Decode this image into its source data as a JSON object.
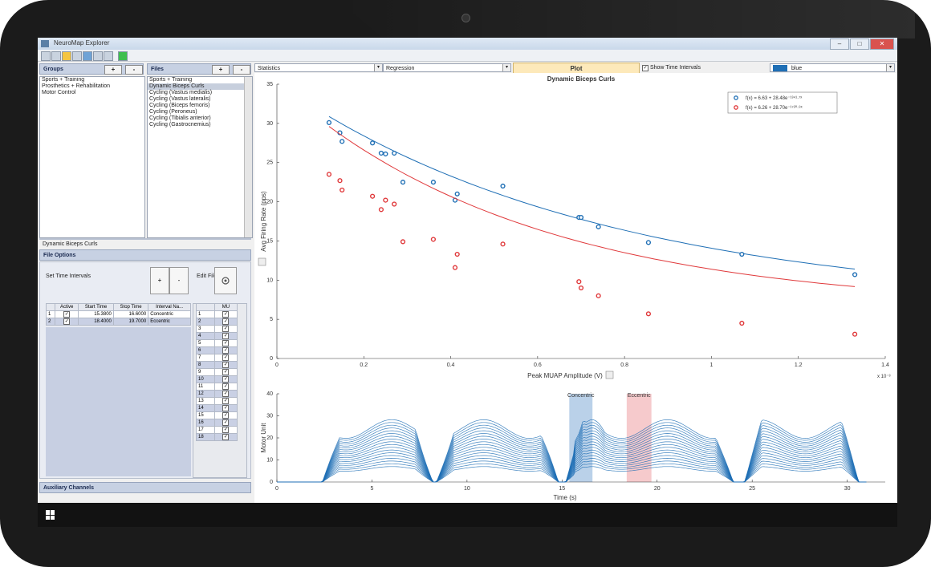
{
  "window": {
    "title": "NeuroMap Explorer"
  },
  "groups": {
    "header": "Groups",
    "add": "+",
    "remove": "-",
    "items": [
      "Sports + Training",
      "Prosthetics + Rehabilitation",
      "Motor Control"
    ]
  },
  "files": {
    "header": "Files",
    "add": "+",
    "remove": "-",
    "items": [
      "Sports + Training",
      "Dynamic Biceps Curls",
      "Cycling (Vastus medialis)",
      "Cycling (Vastus lateralis)",
      "Cycling (Biceps femoris)",
      "Cycling (Peroneus)",
      "Cycling (Tibialis anterior)",
      "Cycling (Gastrocnemius)"
    ],
    "selected_index": 1
  },
  "file_panel": {
    "title": "Dynamic Biceps Curls",
    "options_header": "File Options",
    "set_time_label": "Set Time Intervals",
    "add": "+",
    "remove": "-",
    "edit_label": "Edit File",
    "interval_columns": [
      "Active",
      "Start Time",
      "Stop Time",
      "Interval Na..."
    ],
    "intervals": [
      {
        "n": "1",
        "start": "15.3800",
        "stop": "16.6000",
        "name": "Concentric"
      },
      {
        "n": "2",
        "start": "18.4000",
        "stop": "19.7000",
        "name": "Eccentric"
      }
    ],
    "mu_header": "MU",
    "mu_rows": [
      "1",
      "2",
      "3",
      "4",
      "5",
      "6",
      "7",
      "8",
      "9",
      "10",
      "11",
      "12",
      "13",
      "14",
      "15",
      "16",
      "17",
      "18"
    ],
    "auxiliary": "Auxiliary Channels"
  },
  "controls": {
    "stat": "Statistics",
    "method": "Regression",
    "plot": "Plot",
    "show_time": "Show Time Intervals",
    "color": "blue"
  },
  "chart_data": [
    {
      "type": "scatter",
      "title": "Dynamic Biceps Curls",
      "xlabel": "Peak MUAP Amplitude (V)",
      "ylabel": "Avg Firing Rate (pps)",
      "x_multiplier": "x 10⁻³",
      "xlim": [
        0,
        1.4
      ],
      "ylim": [
        0,
        35
      ],
      "xticks": [
        "0",
        "0.2",
        "0.4",
        "0.6",
        "0.8",
        "1",
        "1.2",
        "1.4"
      ],
      "yticks": [
        "0",
        "5",
        "10",
        "15",
        "20",
        "25",
        "30",
        "35"
      ],
      "series": [
        {
          "color": "#1f6fb5",
          "x": [
            0.12,
            0.145,
            0.15,
            0.22,
            0.24,
            0.25,
            0.27,
            0.29,
            0.36,
            0.41,
            0.415,
            0.52,
            0.695,
            0.7,
            0.74,
            0.855,
            1.07,
            1.33
          ],
          "y": [
            30.1,
            28.8,
            27.7,
            27.5,
            26.2,
            26.1,
            26.2,
            22.5,
            22.5,
            20.2,
            21.0,
            22.0,
            18.0,
            18.0,
            16.8,
            14.8,
            13.3,
            10.7
          ],
          "fit": [
            6.63,
            28.48,
            1341.7
          ]
        },
        {
          "color": "#e0393b",
          "x": [
            0.12,
            0.145,
            0.15,
            0.22,
            0.24,
            0.25,
            0.27,
            0.29,
            0.36,
            0.41,
            0.415,
            0.52,
            0.695,
            0.7,
            0.74,
            0.855,
            1.07,
            1.33
          ],
          "y": [
            23.5,
            22.7,
            21.5,
            20.7,
            19.0,
            20.2,
            19.7,
            14.9,
            15.2,
            11.6,
            13.3,
            14.6,
            9.8,
            9.0,
            8.0,
            5.7,
            4.5,
            3.1
          ],
          "fit": [
            6.26,
            28.7,
            1720.9
          ]
        }
      ],
      "legend": [
        "f(x) = 6.63 + 28.48e⁻¹³⁴¹·⁷ˣ",
        "f(x) = 6.26 + 28.70e⁻¹⁷²⁰·⁹ˣ"
      ],
      "legend_placement": "top-right"
    },
    {
      "type": "line",
      "xlabel": "Time (s)",
      "ylabel": "Motor Unit",
      "xlim": [
        0,
        32
      ],
      "ylim": [
        0,
        40
      ],
      "xticks": [
        "0",
        "5",
        "10",
        "15",
        "20",
        "25",
        "30"
      ],
      "yticks": [
        "0",
        "10",
        "20",
        "30",
        "40"
      ],
      "intervals": [
        {
          "name": "Concentric",
          "start": 15.38,
          "stop": 16.6,
          "color": "#9dbde0"
        },
        {
          "name": "Eccentric",
          "start": 18.4,
          "stop": 19.7,
          "color": "#f2b3b6"
        }
      ],
      "series_count": 18,
      "line_color": "#1f6fb5"
    }
  ],
  "taskbar": {
    "start_icon": "windows-icon"
  }
}
